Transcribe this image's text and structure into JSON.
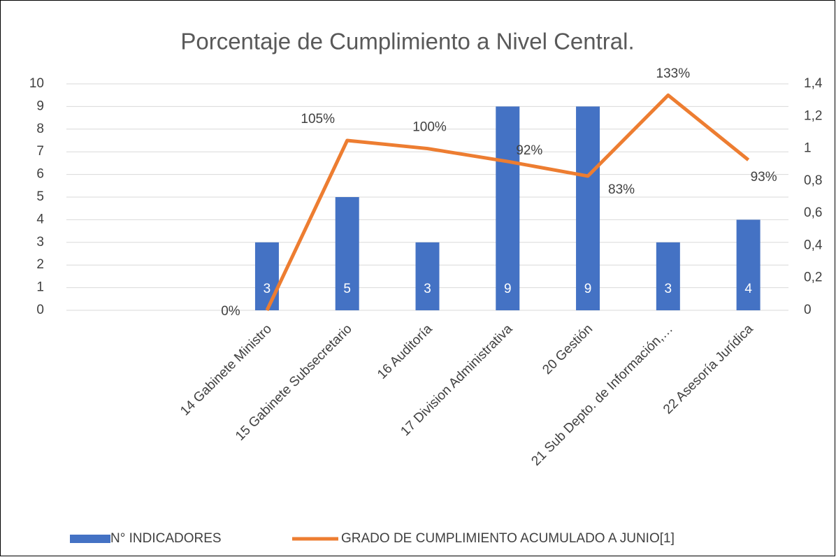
{
  "chart_data": {
    "type": "bar_line",
    "title": "Porcentaje de Cumplimiento a Nivel Central.",
    "categories": [
      null,
      null,
      "14 Gabinete Ministro",
      "15 Gabinete Subsecretario",
      "16 Auditoría",
      "17 Division Administrativa",
      "20 Gestión",
      "21 Sub Depto. de Información,…",
      "22 Asesoría Jurídica"
    ],
    "series": [
      {
        "name": "N° INDICADORES",
        "type": "bar",
        "color": "#4472c4",
        "values": [
          null,
          null,
          3,
          5,
          3,
          9,
          9,
          3,
          4
        ]
      },
      {
        "name": "GRADO DE CUMPLIMIENTO ACUMULADO A JUNIO[1]",
        "type": "line",
        "axis": "y2",
        "color": "#ed7d31",
        "values": [
          null,
          null,
          0,
          1.05,
          1.0,
          0.92,
          0.83,
          1.33,
          0.93
        ],
        "value_labels": [
          null,
          null,
          "0%",
          "105%",
          "100%",
          "92%",
          "83%",
          "133%",
          "93%"
        ]
      }
    ],
    "ylim": [
      0,
      10
    ],
    "yticks": [
      0,
      1,
      2,
      3,
      4,
      5,
      6,
      7,
      8,
      9,
      10
    ],
    "y2lim": [
      0,
      1.4
    ],
    "y2ticks": [
      0,
      {
        "value": 0.2,
        "label": "0,2"
      },
      {
        "value": 0.4,
        "label": "0,4"
      },
      {
        "value": 0.6,
        "label": "0,6"
      },
      {
        "value": 0.8,
        "label": "0,8"
      },
      1,
      {
        "value": 1.2,
        "label": "1,2"
      },
      {
        "value": 1.4,
        "label": "1,4"
      }
    ],
    "grid": true,
    "legend": "bottom"
  }
}
